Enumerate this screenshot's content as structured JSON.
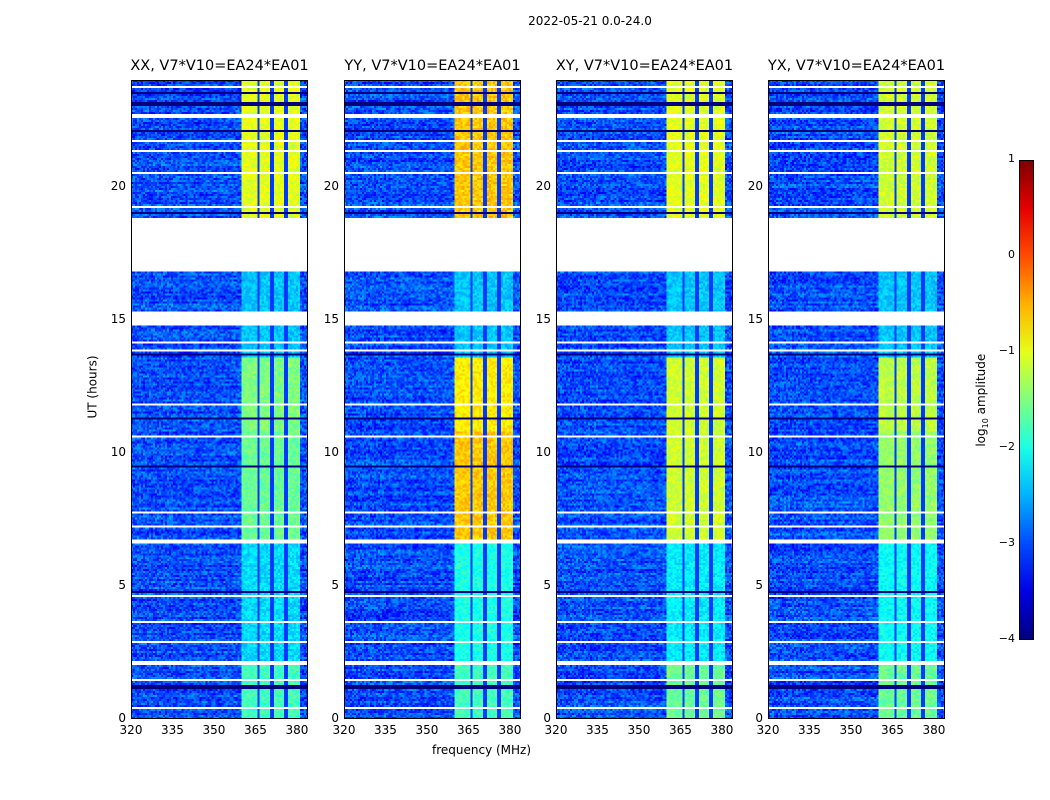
{
  "chart_data": {
    "type": "heatmap",
    "title": "2022-05-21 0.0-24.0",
    "xlabel": "frequency (MHz)",
    "ylabel": "UT (hours)",
    "xlim": [
      320,
      384
    ],
    "ylim": [
      0,
      24
    ],
    "xticks": [
      "320",
      "335",
      "350",
      "365",
      "380"
    ],
    "xtick_values": [
      320,
      335,
      350,
      365,
      380
    ],
    "yticks": [
      "0",
      "5",
      "10",
      "15",
      "20"
    ],
    "ytick_values": [
      0,
      5,
      10,
      15,
      20
    ],
    "colorbar": {
      "label": "log10 amplitude",
      "label_main": "log",
      "label_sub": "10",
      "label_rest": " amplitude",
      "range": [
        -4,
        1
      ],
      "ticks": [
        "1",
        "0",
        "−1",
        "−2",
        "−3",
        "−4"
      ],
      "tick_values": [
        1,
        0,
        -1,
        -2,
        -3,
        -4
      ],
      "colormap": "jet"
    },
    "background_level": -3.0,
    "band": {
      "range_mhz": [
        360,
        381
      ],
      "channel_edges_mhz": [
        366,
        371,
        376
      ]
    },
    "time_segments": [
      [
        0,
        2
      ],
      [
        2.15,
        6.6
      ],
      [
        6.75,
        10.8
      ],
      [
        10.8,
        13.6
      ],
      [
        13.6,
        16.8
      ],
      [
        18.8,
        24
      ]
    ],
    "flagged_ranges": [
      [
        0.35,
        0.42
      ],
      [
        1.45,
        1.52
      ],
      [
        2.0,
        2.15
      ],
      [
        2.6,
        2.66
      ],
      [
        2.85,
        2.9
      ],
      [
        3.6,
        3.65
      ],
      [
        4.6,
        4.65
      ],
      [
        6.6,
        6.75
      ],
      [
        7.2,
        7.25
      ],
      [
        7.75,
        7.8
      ],
      [
        8.6,
        8.65
      ],
      [
        10.6,
        10.65
      ],
      [
        11.0,
        11.05
      ],
      [
        11.8,
        11.85
      ],
      [
        13.8,
        13.85
      ],
      [
        14.1,
        14.15
      ],
      [
        14.8,
        15.3
      ],
      [
        16.1,
        16.15
      ],
      [
        16.4,
        16.45
      ],
      [
        17.2,
        17.9
      ],
      [
        18.2,
        18.26
      ],
      [
        19.2,
        19.25
      ],
      [
        20.5,
        20.55
      ],
      [
        21.3,
        21.35
      ],
      [
        21.7,
        21.75
      ],
      [
        22.55,
        22.7
      ],
      [
        23.7,
        23.75
      ]
    ],
    "dropout_times": [
      1.2,
      4.75,
      9.5,
      11.3,
      13.7,
      18.6,
      19.0,
      22.1,
      23.1,
      23.5
    ],
    "series": [
      {
        "name": "XX, V7*V10=EA24*EA01",
        "band_levels": [
          -1.8,
          -2.3,
          -1.6,
          -1.5,
          -2.4,
          -1.0
        ]
      },
      {
        "name": "YY, V7*V10=EA24*EA01",
        "band_levels": [
          -1.8,
          -2.0,
          -0.6,
          -0.8,
          -2.4,
          -0.6
        ]
      },
      {
        "name": "XY, V7*V10=EA24*EA01",
        "band_levels": [
          -1.6,
          -2.2,
          -1.1,
          -1.1,
          -2.4,
          -1.0
        ]
      },
      {
        "name": "YX, V7*V10=EA24*EA01",
        "band_levels": [
          -1.6,
          -2.1,
          -1.4,
          -1.2,
          -2.4,
          -1.1
        ]
      }
    ]
  }
}
